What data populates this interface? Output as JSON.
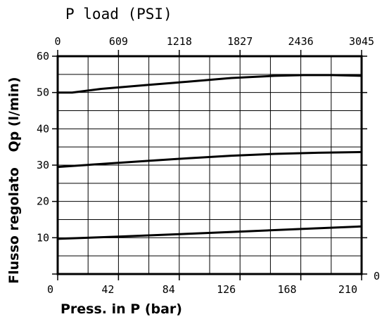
{
  "chart_data": {
    "type": "line",
    "title": "",
    "xlabel": "Press. in P (bar)",
    "x2label": "P load (PSI)",
    "ylabel_left": "Flusso regolato",
    "ylabel_left_unit": "Qp (l/min)",
    "xlim": [
      0,
      210
    ],
    "ylim": [
      0,
      60
    ],
    "x_ticks": [
      "0",
      "42",
      "84",
      "126",
      "168",
      "210"
    ],
    "x_tick_values": [
      0,
      42,
      84,
      126,
      168,
      210
    ],
    "x2_ticks": [
      "0",
      "609",
      "1218",
      "1827",
      "2436",
      "3045"
    ],
    "y_ticks": [
      "10",
      "20",
      "30",
      "40",
      "50",
      "60"
    ],
    "y_tick_values": [
      10,
      20,
      30,
      40,
      50,
      60
    ],
    "right_zero_label": "0",
    "grid": true,
    "series": [
      {
        "x": [
          0,
          10,
          30,
          60,
          90,
          120,
          150,
          170,
          190,
          210
        ],
        "values": [
          50,
          50,
          51,
          52,
          53,
          54,
          54.6,
          54.8,
          54.8,
          54.6
        ]
      },
      {
        "x": [
          0,
          30,
          60,
          90,
          120,
          150,
          180,
          210
        ],
        "values": [
          29.5,
          30.3,
          31.1,
          31.9,
          32.6,
          33.1,
          33.4,
          33.6
        ]
      },
      {
        "x": [
          0,
          42,
          84,
          126,
          168,
          210
        ],
        "values": [
          9.7,
          10.3,
          11.0,
          11.7,
          12.4,
          13.1
        ]
      }
    ]
  }
}
